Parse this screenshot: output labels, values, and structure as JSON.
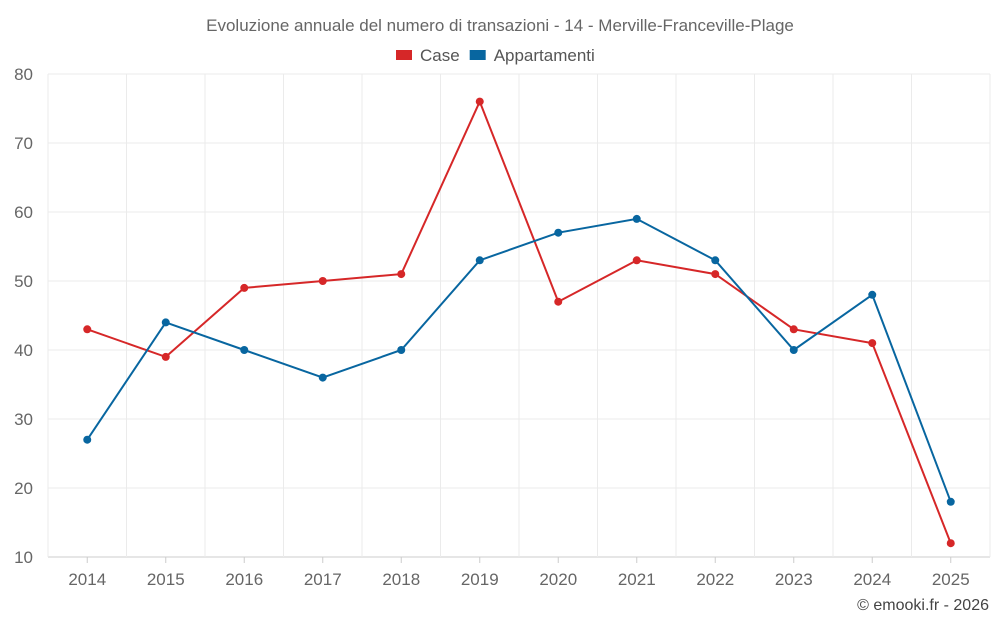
{
  "chart_data": {
    "type": "line",
    "title": "Evoluzione annuale del numero di transazioni - 14 - Merville-Franceville-Plage",
    "categories": [
      "2014",
      "2015",
      "2016",
      "2017",
      "2018",
      "2019",
      "2020",
      "2021",
      "2022",
      "2023",
      "2024",
      "2025"
    ],
    "series": [
      {
        "name": "Case",
        "color": "#d62728",
        "values": [
          43,
          39,
          49,
          50,
          51,
          76,
          47,
          53,
          51,
          43,
          41,
          12
        ]
      },
      {
        "name": "Appartamenti",
        "color": "#0866a0",
        "values": [
          27,
          44,
          40,
          36,
          40,
          53,
          57,
          59,
          53,
          40,
          48,
          18
        ]
      }
    ],
    "yticks": [
      10,
      20,
      30,
      40,
      50,
      60,
      70,
      80
    ],
    "ylim": [
      10,
      80
    ],
    "xlabel": "",
    "ylabel": "",
    "grid": true,
    "legend_position": "top-center"
  },
  "credit": "© emooki.fr - 2026"
}
